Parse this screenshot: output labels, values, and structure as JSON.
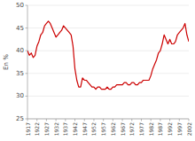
{
  "chart_data": {
    "type": "line",
    "ylabel": "En %",
    "color": "#cc0000",
    "grid": true,
    "xlim": [
      1917,
      2002
    ],
    "ylim": [
      25,
      50
    ],
    "xticks": [
      1917,
      1922,
      1927,
      1932,
      1937,
      1942,
      1947,
      1952,
      1957,
      1962,
      1967,
      1972,
      1977,
      1982,
      1987,
      1992,
      1997,
      2002
    ],
    "yticks": [
      25,
      30,
      35,
      40,
      45,
      50
    ],
    "x": [
      1917,
      1918,
      1919,
      1920,
      1921,
      1922,
      1923,
      1924,
      1925,
      1926,
      1927,
      1928,
      1929,
      1930,
      1931,
      1932,
      1933,
      1934,
      1935,
      1936,
      1937,
      1938,
      1939,
      1940,
      1941,
      1942,
      1943,
      1944,
      1945,
      1946,
      1947,
      1948,
      1949,
      1950,
      1951,
      1952,
      1953,
      1954,
      1955,
      1956,
      1957,
      1958,
      1959,
      1960,
      1961,
      1962,
      1963,
      1964,
      1965,
      1966,
      1967,
      1968,
      1969,
      1970,
      1971,
      1972,
      1973,
      1974,
      1975,
      1976,
      1977,
      1978,
      1979,
      1980,
      1981,
      1982,
      1983,
      1984,
      1985,
      1986,
      1987,
      1988,
      1989,
      1990,
      1991,
      1992,
      1993,
      1994,
      1995,
      1996,
      1997,
      1998,
      1999,
      2000,
      2001,
      2002
    ],
    "values": [
      40.0,
      39.0,
      39.5,
      38.5,
      39.0,
      41.0,
      42.0,
      43.5,
      44.0,
      45.5,
      46.0,
      46.5,
      46.0,
      45.0,
      44.0,
      43.0,
      43.5,
      44.0,
      44.5,
      45.5,
      45.0,
      44.5,
      44.0,
      43.5,
      41.0,
      36.0,
      33.5,
      32.0,
      32.0,
      34.0,
      33.5,
      33.5,
      33.0,
      32.5,
      32.0,
      32.0,
      31.5,
      32.0,
      32.0,
      31.5,
      31.5,
      31.5,
      32.0,
      31.5,
      31.5,
      32.0,
      32.0,
      32.5,
      32.5,
      32.5,
      32.5,
      33.0,
      33.0,
      32.5,
      32.5,
      33.0,
      33.0,
      32.5,
      32.5,
      33.0,
      33.0,
      33.5,
      33.5,
      33.5,
      33.5,
      34.5,
      36.0,
      37.0,
      38.0,
      39.5,
      40.0,
      41.5,
      43.5,
      42.5,
      41.5,
      42.5,
      41.5,
      41.5,
      42.0,
      43.5,
      44.0,
      44.5,
      45.0,
      46.0,
      43.5,
      42.0
    ]
  }
}
